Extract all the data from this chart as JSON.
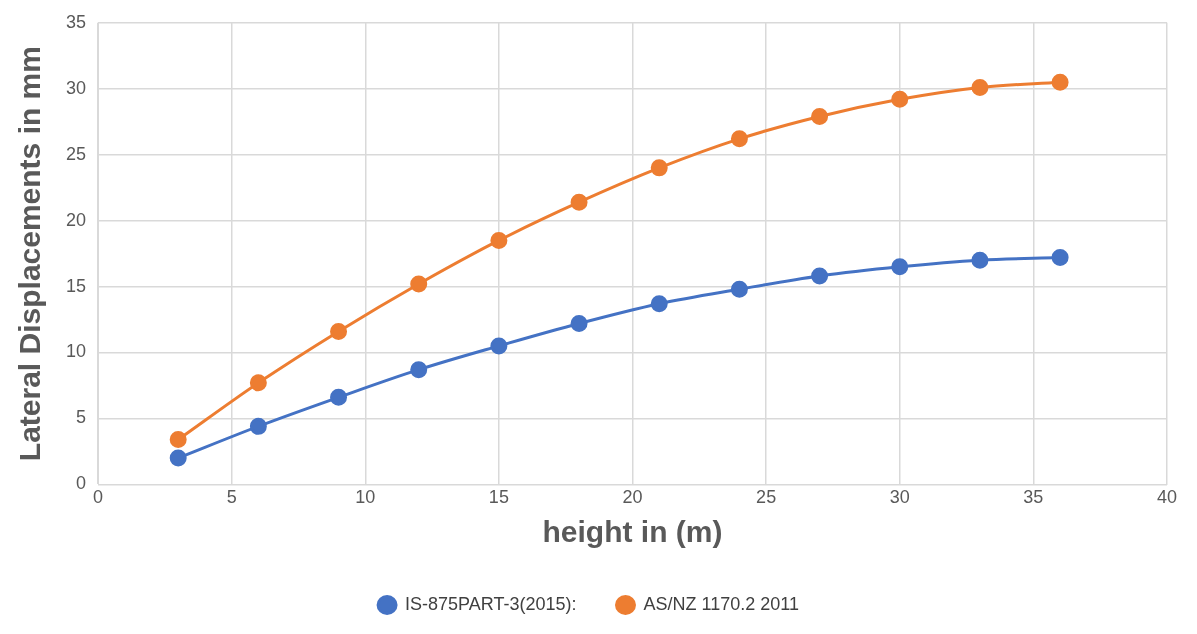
{
  "chart_data": {
    "type": "line",
    "xlabel": "height in (m)",
    "ylabel": "Lateral Displacements in mm",
    "x": [
      3,
      6,
      9,
      12,
      15,
      18,
      21,
      24,
      27,
      30,
      33,
      36
    ],
    "series": [
      {
        "name": "IS-875PART-3(2015):",
        "color": "#4472c4",
        "values": [
          2.0,
          4.4,
          6.6,
          8.7,
          10.5,
          12.2,
          13.7,
          14.8,
          15.8,
          16.5,
          17.0,
          17.2
        ]
      },
      {
        "name": "AS/NZ 1170.2 2011",
        "color": "#ed7d31",
        "values": [
          3.4,
          7.7,
          11.6,
          15.2,
          18.5,
          21.4,
          24.0,
          26.2,
          27.9,
          29.2,
          30.1,
          30.5
        ]
      }
    ],
    "xlim": [
      0,
      40
    ],
    "xticks": [
      0,
      5,
      10,
      15,
      20,
      25,
      30,
      35,
      40
    ],
    "ylim": [
      0,
      35
    ],
    "yticks": [
      0,
      5,
      10,
      15,
      20,
      25,
      30,
      35
    ],
    "grid": true,
    "legend": "bottom",
    "marker": "circle",
    "line_style": "solid"
  }
}
